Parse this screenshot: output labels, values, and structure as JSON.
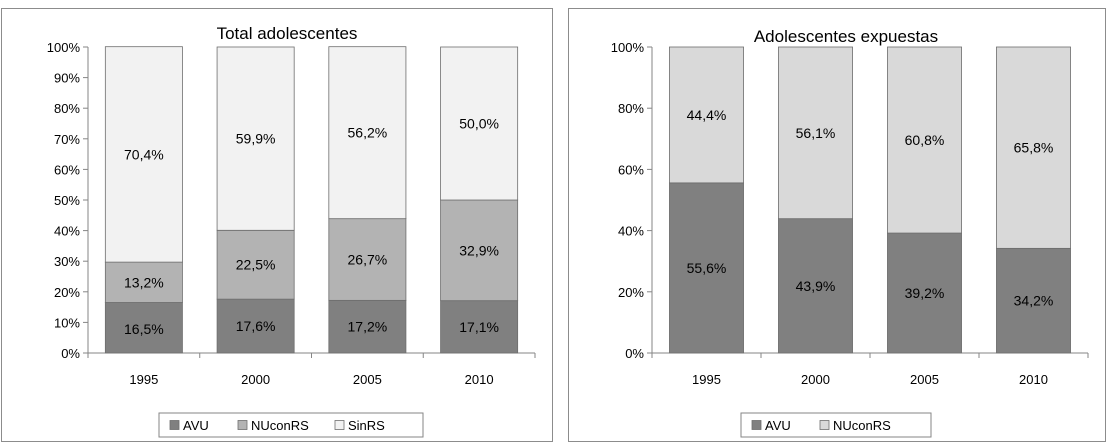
{
  "chart_data": [
    {
      "type": "bar",
      "stacked": "percent",
      "title": "Total adolescentes",
      "xlabel": "",
      "ylabel": "",
      "categories": [
        "1995",
        "2000",
        "2005",
        "2010"
      ],
      "ylim": [
        0,
        100
      ],
      "yticks": [
        "0%",
        "10%",
        "20%",
        "30%",
        "40%",
        "50%",
        "60%",
        "70%",
        "80%",
        "90%",
        "100%"
      ],
      "series": [
        {
          "name": "AVU",
          "color": "#808080",
          "values": [
            16.5,
            17.6,
            17.2,
            17.1
          ],
          "labels": [
            "16,5%",
            "17,6%",
            "17,2%",
            "17,1%"
          ]
        },
        {
          "name": "NUconRS",
          "color": "#b3b3b3",
          "values": [
            13.2,
            22.5,
            26.7,
            32.9
          ],
          "labels": [
            "13,2%",
            "22,5%",
            "26,7%",
            "32,9%"
          ]
        },
        {
          "name": "SinRS",
          "color": "#f2f2f2",
          "values": [
            70.4,
            59.9,
            56.2,
            50.0
          ],
          "labels": [
            "70,4%",
            "59,9%",
            "56,2%",
            "50,0%"
          ]
        }
      ],
      "legend": "bottom",
      "grid": false
    },
    {
      "type": "bar",
      "stacked": "percent",
      "title": "Adolescentes expuestas",
      "xlabel": "",
      "ylabel": "",
      "categories": [
        "1995",
        "2000",
        "2005",
        "2010"
      ],
      "ylim": [
        0,
        100
      ],
      "yticks": [
        "0%",
        "20%",
        "40%",
        "60%",
        "80%",
        "100%"
      ],
      "series": [
        {
          "name": "AVU",
          "color": "#808080",
          "values": [
            55.6,
            43.9,
            39.2,
            34.2
          ],
          "labels": [
            "55,6%",
            "43,9%",
            "39,2%",
            "34,2%"
          ]
        },
        {
          "name": "NUconRS",
          "color": "#d9d9d9",
          "values": [
            44.4,
            56.1,
            60.8,
            65.8
          ],
          "labels": [
            "44,4%",
            "56,1%",
            "60,8%",
            "65,8%"
          ]
        }
      ],
      "legend": "bottom",
      "grid": false
    }
  ]
}
